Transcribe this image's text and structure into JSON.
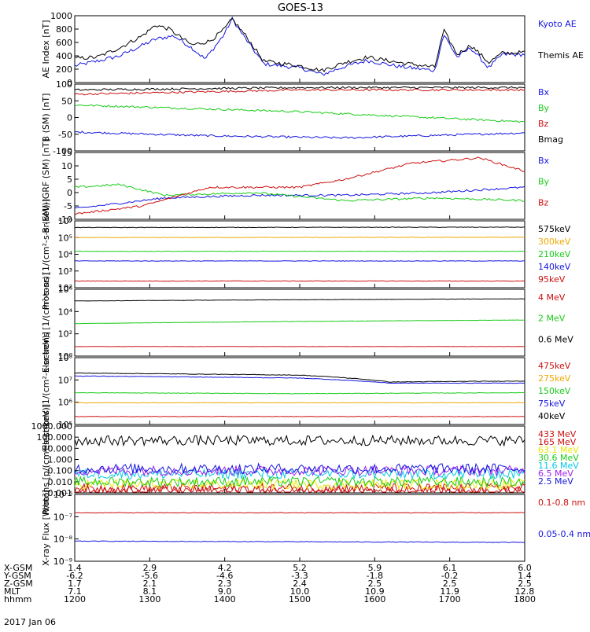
{
  "title": "GOES-13",
  "date_label": "2017 Jan 06",
  "colors": {
    "black": "#000000",
    "blue": "#1515e0",
    "red": "#cc1010",
    "green": "#18cc18",
    "orange": "#f0a800",
    "yellow": "#e8e800",
    "cyan": "#00c8e8",
    "purple": "#a020f0"
  },
  "ephemeris": {
    "rows": [
      {
        "label": "X-GSM",
        "values": [
          "1.4",
          "2.9",
          "4.2",
          "5.2",
          "5.9",
          "6.1",
          "6.0"
        ]
      },
      {
        "label": "Y-GSM",
        "values": [
          "-6.2",
          "-5.6",
          "-4.6",
          "-3.3",
          "-1.8",
          "-0.2",
          "1.4"
        ]
      },
      {
        "label": "Z-GSM",
        "values": [
          "1.7",
          "2.1",
          "2.3",
          "2.4",
          "2.5",
          "2.5",
          "2.5"
        ]
      },
      {
        "label": "MLT",
        "values": [
          "7.1",
          "8.1",
          "9.0",
          "10.0",
          "10.9",
          "11.9",
          "12.8"
        ]
      },
      {
        "label": "hhmm",
        "values": [
          "1200",
          "1300",
          "1400",
          "1500",
          "1600",
          "1700",
          "1800"
        ]
      }
    ]
  },
  "chart_data": [
    {
      "type": "line",
      "ylabel": "AE Index [nT]",
      "x_range": [
        "1200",
        "1800"
      ],
      "ylim": [
        0,
        1000
      ],
      "ticks": [
        "0",
        "200",
        "400",
        "600",
        "800",
        "1000"
      ],
      "series": [
        {
          "name": "Kyoto AE",
          "color": "blue",
          "anchors": [
            [
              0,
              250
            ],
            [
              0.05,
              320
            ],
            [
              0.1,
              400
            ],
            [
              0.18,
              650
            ],
            [
              0.22,
              700
            ],
            [
              0.26,
              520
            ],
            [
              0.29,
              350
            ],
            [
              0.33,
              700
            ],
            [
              0.35,
              950
            ],
            [
              0.38,
              650
            ],
            [
              0.42,
              280
            ],
            [
              0.5,
              220
            ],
            [
              0.55,
              120
            ],
            [
              0.6,
              240
            ],
            [
              0.65,
              330
            ],
            [
              0.72,
              240
            ],
            [
              0.8,
              180
            ],
            [
              0.82,
              720
            ],
            [
              0.85,
              380
            ],
            [
              0.88,
              520
            ],
            [
              0.92,
              220
            ],
            [
              0.95,
              420
            ],
            [
              1,
              420
            ]
          ]
        },
        {
          "name": "Themis AE",
          "color": "black",
          "anchors": [
            [
              0,
              360
            ],
            [
              0.05,
              380
            ],
            [
              0.1,
              520
            ],
            [
              0.15,
              700
            ],
            [
              0.18,
              860
            ],
            [
              0.21,
              800
            ],
            [
              0.26,
              560
            ],
            [
              0.3,
              620
            ],
            [
              0.33,
              780
            ],
            [
              0.35,
              950
            ],
            [
              0.38,
              700
            ],
            [
              0.42,
              320
            ],
            [
              0.5,
              250
            ],
            [
              0.55,
              180
            ],
            [
              0.6,
              300
            ],
            [
              0.65,
              380
            ],
            [
              0.72,
              300
            ],
            [
              0.8,
              230
            ],
            [
              0.82,
              780
            ],
            [
              0.85,
              420
            ],
            [
              0.88,
              560
            ],
            [
              0.92,
              300
            ],
            [
              0.95,
              440
            ],
            [
              1,
              450
            ]
          ]
        }
      ]
    },
    {
      "type": "line",
      "ylabel": "B (SM) [nT]",
      "ylim": [
        -110,
        120
      ],
      "ticks": [
        "-100",
        "-50",
        "0",
        "50",
        "100"
      ],
      "series": [
        {
          "name": "Bx",
          "color": "blue",
          "anchors": [
            [
              0,
              -45
            ],
            [
              0.3,
              -58
            ],
            [
              0.6,
              -65
            ],
            [
              1,
              -48
            ]
          ]
        },
        {
          "name": "By",
          "color": "green",
          "anchors": [
            [
              0,
              48
            ],
            [
              0.5,
              25
            ],
            [
              1,
              -10
            ]
          ]
        },
        {
          "name": "Bz",
          "color": "red",
          "anchors": [
            [
              0,
              85
            ],
            [
              0.5,
              100
            ],
            [
              1,
              100
            ]
          ]
        },
        {
          "name": "Bmag",
          "color": "black",
          "anchors": [
            [
              0,
              100
            ],
            [
              0.5,
              108
            ],
            [
              1,
              108
            ]
          ]
        }
      ]
    },
    {
      "type": "line",
      "ylabel": "B (SM)-IGRF (SM) [nT]",
      "ylim": [
        -10,
        15
      ],
      "ticks": [
        "-10",
        "-5",
        "0",
        "5",
        "10",
        "15"
      ],
      "series": [
        {
          "name": "Bx",
          "color": "blue",
          "anchors": [
            [
              0,
              -6
            ],
            [
              0.2,
              -2
            ],
            [
              0.4,
              -1
            ],
            [
              0.6,
              -1
            ],
            [
              0.8,
              0
            ],
            [
              1,
              2
            ]
          ]
        },
        {
          "name": "By",
          "color": "green",
          "anchors": [
            [
              0,
              2
            ],
            [
              0.1,
              3
            ],
            [
              0.2,
              -1
            ],
            [
              0.4,
              0
            ],
            [
              0.6,
              -3
            ],
            [
              0.8,
              -2
            ],
            [
              1,
              -3
            ]
          ]
        },
        {
          "name": "Bz",
          "color": "red",
          "anchors": [
            [
              0,
              -8
            ],
            [
              0.15,
              -5
            ],
            [
              0.3,
              2
            ],
            [
              0.5,
              2
            ],
            [
              0.6,
              5
            ],
            [
              0.75,
              11
            ],
            [
              0.9,
              13
            ],
            [
              1,
              8
            ]
          ]
        }
      ]
    },
    {
      "type": "line",
      "ylabel": "Protons [1/(cm²-s-sr-keV)]",
      "yscale": "log",
      "ylim": [
        100,
        1000000
      ],
      "ticks": [
        "10²",
        "10³",
        "10⁴",
        "10⁵",
        "10⁶"
      ],
      "series": [
        {
          "name": "575keV",
          "color": "black",
          "anchors": [
            [
              0,
              400000
            ],
            [
              1,
              420000
            ]
          ]
        },
        {
          "name": "300keV",
          "color": "orange",
          "anchors": [
            [
              0,
              100000
            ],
            [
              1,
              105000
            ]
          ]
        },
        {
          "name": "210keV",
          "color": "green",
          "anchors": [
            [
              0,
              15000
            ],
            [
              1,
              15000
            ]
          ]
        },
        {
          "name": "140keV",
          "color": "blue",
          "anchors": [
            [
              0,
              4000
            ],
            [
              1,
              4000
            ]
          ]
        },
        {
          "name": "95keV",
          "color": "red",
          "anchors": [
            [
              0,
              250
            ],
            [
              1,
              250
            ]
          ]
        }
      ]
    },
    {
      "type": "line",
      "ylabel": "Electrons [1/(cm²-s-sr)]",
      "yscale": "log",
      "ylim": [
        1,
        10000000
      ],
      "ticks": [
        "10⁰",
        "10²",
        "10⁴",
        "10⁶"
      ],
      "series": [
        {
          "name": "4 MeV",
          "color": "red",
          "anchors": [
            [
              0,
              10
            ],
            [
              1,
              10
            ]
          ]
        },
        {
          "name": "2 MeV",
          "color": "green",
          "anchors": [
            [
              0,
              2500
            ],
            [
              1,
              6000
            ]
          ]
        },
        {
          "name": "0.6 MeV",
          "color": "black",
          "anchors": [
            [
              0,
              600000
            ],
            [
              1,
              1000000
            ]
          ]
        }
      ]
    },
    {
      "type": "line",
      "ylabel": "Electrons [1/(cm²-s-sr-keV)]",
      "yscale": "log",
      "ylim": [
        10000,
        100000000
      ],
      "ticks": [
        "10⁵",
        "10⁶",
        "10⁷",
        "10⁸"
      ],
      "series": [
        {
          "name": "475keV",
          "color": "red",
          "anchors": [
            [
              0,
              30000
            ],
            [
              1,
              30000
            ]
          ]
        },
        {
          "name": "275keV",
          "color": "orange",
          "anchors": [
            [
              0,
              200000
            ],
            [
              1,
              200000
            ]
          ]
        },
        {
          "name": "150keV",
          "color": "green",
          "anchors": [
            [
              0,
              800000
            ],
            [
              0.5,
              700000
            ],
            [
              1,
              800000
            ]
          ]
        },
        {
          "name": "75keV",
          "color": "blue",
          "anchors": [
            [
              0,
              8000000
            ],
            [
              0.5,
              6000000
            ],
            [
              0.7,
              3000000
            ],
            [
              1,
              3000000
            ]
          ]
        },
        {
          "name": "40keV",
          "color": "black",
          "anchors": [
            [
              0,
              12000000
            ],
            [
              0.5,
              9000000
            ],
            [
              0.7,
              3500000
            ],
            [
              1,
              4000000
            ]
          ]
        }
      ]
    },
    {
      "type": "line",
      "ylabel": "Protons [p/(cm²-s-sr-keV)]",
      "yscale": "log",
      "ylim": [
        0.001,
        1000
      ],
      "ticks": [
        "0.001",
        "0.010",
        "0.100",
        "1.000",
        "10.000",
        "100.000",
        "1000.000"
      ],
      "series": [
        {
          "name": "433 MeV",
          "color": "red",
          "anchors": [
            [
              0,
              0.0015
            ],
            [
              1,
              0.0015
            ]
          ]
        },
        {
          "name": "165 MeV",
          "color": "red",
          "anchors": [
            [
              0,
              0.0025
            ],
            [
              1,
              0.0025
            ]
          ]
        },
        {
          "name": "63.1 MeV",
          "color": "yellow",
          "anchors": [
            [
              0,
              0.006
            ],
            [
              1,
              0.006
            ]
          ]
        },
        {
          "name": "30.6 MeV",
          "color": "green",
          "anchors": [
            [
              0,
              0.01
            ],
            [
              1,
              0.01
            ]
          ]
        },
        {
          "name": "11.6 MeV",
          "color": "cyan",
          "anchors": [
            [
              0,
              0.05
            ],
            [
              1,
              0.05
            ]
          ]
        },
        {
          "name": "6.5 MeV",
          "color": "purple",
          "anchors": [
            [
              0,
              0.1
            ],
            [
              1,
              0.1
            ]
          ]
        },
        {
          "name": "2.5 MeV",
          "color": "blue",
          "anchors": [
            [
              0,
              0.15
            ],
            [
              1,
              0.15
            ]
          ]
        },
        {
          "name": "",
          "color": "black",
          "anchors": [
            [
              0,
              50
            ],
            [
              1,
              50
            ]
          ]
        }
      ]
    },
    {
      "type": "line",
      "ylabel": "X-ray Flux [W/m²]",
      "yscale": "log",
      "ylim": [
        1e-09,
        1e-06
      ],
      "ticks": [
        "10⁻⁹",
        "10⁻⁸",
        "10⁻⁷",
        "10⁻⁶"
      ],
      "series": [
        {
          "name": "0.1-0.8 nm",
          "color": "red",
          "anchors": [
            [
              0,
              1.5e-07
            ],
            [
              1,
              1.5e-07
            ]
          ]
        },
        {
          "name": "0.05-0.4 nm",
          "color": "blue",
          "anchors": [
            [
              0,
              8e-09
            ],
            [
              1,
              7e-09
            ]
          ]
        }
      ]
    }
  ]
}
